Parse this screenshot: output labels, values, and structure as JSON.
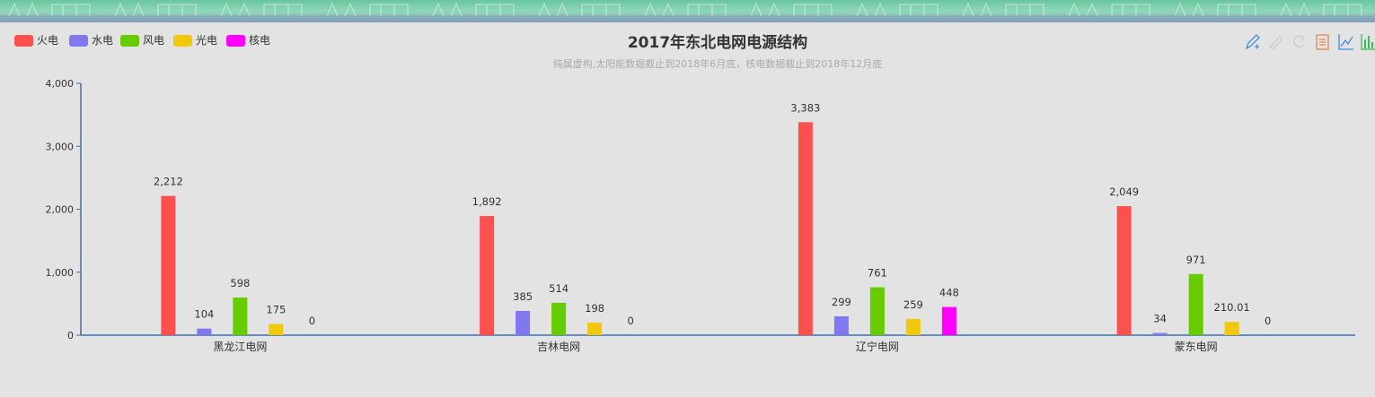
{
  "chart_data": {
    "type": "bar",
    "title": "2017年东北电网电源结构",
    "subtitle": "纯属虚构,太阳能数据截止到2018年6月底，核电数据截止到2018年12月底",
    "categories": [
      "黑龙江电网",
      "吉林电网",
      "辽宁电网",
      "蒙东电网"
    ],
    "series": [
      {
        "name": "火电",
        "color": "#ff5050",
        "values": [
          2212,
          1892,
          3383,
          2049
        ],
        "label_color": "#e53935"
      },
      {
        "name": "水电",
        "color": "#8178f0",
        "values": [
          104,
          385,
          299,
          34
        ],
        "label_color": "#333333"
      },
      {
        "name": "风电",
        "color": "#66cc00",
        "values": [
          598,
          514,
          761,
          971
        ],
        "label_color": "#333333"
      },
      {
        "name": "光电",
        "color": "#f2c80f",
        "values": [
          175,
          198,
          259,
          210.01
        ],
        "label_color": "#333333"
      },
      {
        "name": "核电",
        "color": "#ff00ff",
        "values": [
          0,
          0,
          448,
          0
        ],
        "label_color": "#333333"
      }
    ],
    "data_labels": [
      [
        "2,212",
        "1,892",
        "3,383",
        "2,049"
      ],
      [
        "104",
        "385",
        "299",
        "34"
      ],
      [
        "598",
        "514",
        "761",
        "971"
      ],
      [
        "175",
        "198",
        "259",
        "210.01"
      ],
      [
        "0",
        "0",
        "448",
        "0"
      ]
    ],
    "ylim": [
      0,
      4000
    ],
    "yticks": [
      0,
      1000,
      2000,
      3000,
      4000
    ],
    "ytick_labels": [
      "0",
      "1,000",
      "2,000",
      "3,000",
      "4,000"
    ],
    "legend_position": "top-left",
    "grid": false,
    "xlabel": "",
    "ylabel": ""
  },
  "legend": {
    "active_color": "#c23531"
  },
  "toolbox": {
    "icons": [
      "edit-pen-icon",
      "eraser-icon",
      "refresh-icon",
      "data-view-icon",
      "line-chart-icon",
      "bar-chart-icon"
    ],
    "color_blue": "#3f8fd8",
    "color_orange": "#e8864f",
    "color_green": "#3dbb5a",
    "color_grey": "#cccccc"
  }
}
